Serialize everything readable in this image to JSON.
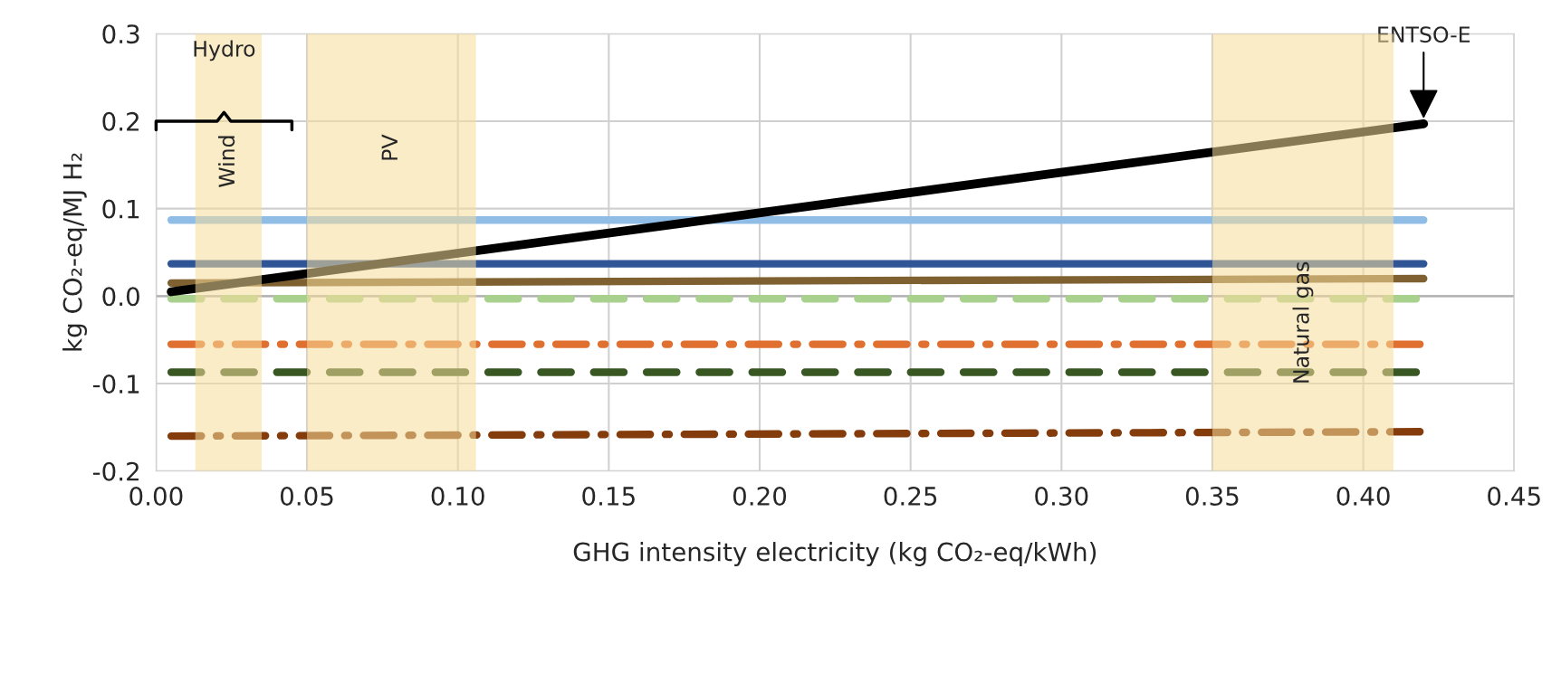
{
  "chart_data": {
    "type": "line",
    "xlabel": "GHG intensity electricity (kg CO₂-eq/kWh)",
    "ylabel": "kg CO₂-eq/MJ H₂",
    "xlim": [
      0,
      0.45
    ],
    "ylim": [
      -0.2,
      0.3
    ],
    "xticks": [
      {
        "value": 0,
        "label": "0.00"
      },
      {
        "value": 0.05,
        "label": "0.05"
      },
      {
        "value": 0.1,
        "label": "0.10"
      },
      {
        "value": 0.15,
        "label": "0.15"
      },
      {
        "value": 0.2,
        "label": "0.20"
      },
      {
        "value": 0.25,
        "label": "0.25"
      },
      {
        "value": 0.3,
        "label": "0.30"
      },
      {
        "value": 0.35,
        "label": "0.35"
      },
      {
        "value": 0.4,
        "label": "0.40"
      },
      {
        "value": 0.45,
        "label": "0.45"
      }
    ],
    "yticks": [
      {
        "value": -0.2,
        "label": "-0.2"
      },
      {
        "value": -0.1,
        "label": "-0.1"
      },
      {
        "value": 0,
        "label": "0.0"
      },
      {
        "value": 0.1,
        "label": "0.1"
      },
      {
        "value": 0.2,
        "label": "0.2"
      },
      {
        "value": 0.3,
        "label": "0.3"
      }
    ],
    "grid": true,
    "x": [
      0.005,
      0.42
    ],
    "series": [
      {
        "color": "#8fbde6",
        "values": [
          0.087,
          0.087
        ],
        "line_style": "solid"
      },
      {
        "color": "#2f5597",
        "values": [
          0.037,
          0.037
        ],
        "line_style": "solid"
      },
      {
        "color": "#7f6030",
        "values": [
          0.015,
          0.02
        ],
        "line_style": "solid"
      },
      {
        "color": "#a9d18e",
        "values": [
          -0.003,
          -0.003
        ],
        "line_style": "dashed"
      },
      {
        "color": "#e07030",
        "values": [
          -0.055,
          -0.055
        ],
        "line_style": "dashdot"
      },
      {
        "color": "#385723",
        "values": [
          -0.087,
          -0.087
        ],
        "line_style": "dashed"
      },
      {
        "color": "#843c0c",
        "values": [
          -0.16,
          -0.155
        ],
        "line_style": "dashdot"
      },
      {
        "color": "#000000",
        "values": [
          0.005,
          0.197
        ],
        "line_style": "solid"
      }
    ],
    "bands": [
      {
        "axis": "x",
        "from": 0.013,
        "to": 0.035,
        "label": "Wind",
        "color": "#f7dc9a"
      },
      {
        "axis": "x",
        "from": 0.05,
        "to": 0.106,
        "label": "PV",
        "color": "#f7dc9a"
      },
      {
        "axis": "x",
        "from": 0.35,
        "to": 0.41,
        "label": "Natural gas",
        "color": "#f7dc9a"
      }
    ],
    "annotations": [
      "Hydro",
      {
        "text": "ENTSO-E",
        "x": 0.42,
        "y": 0.2
      }
    ]
  }
}
